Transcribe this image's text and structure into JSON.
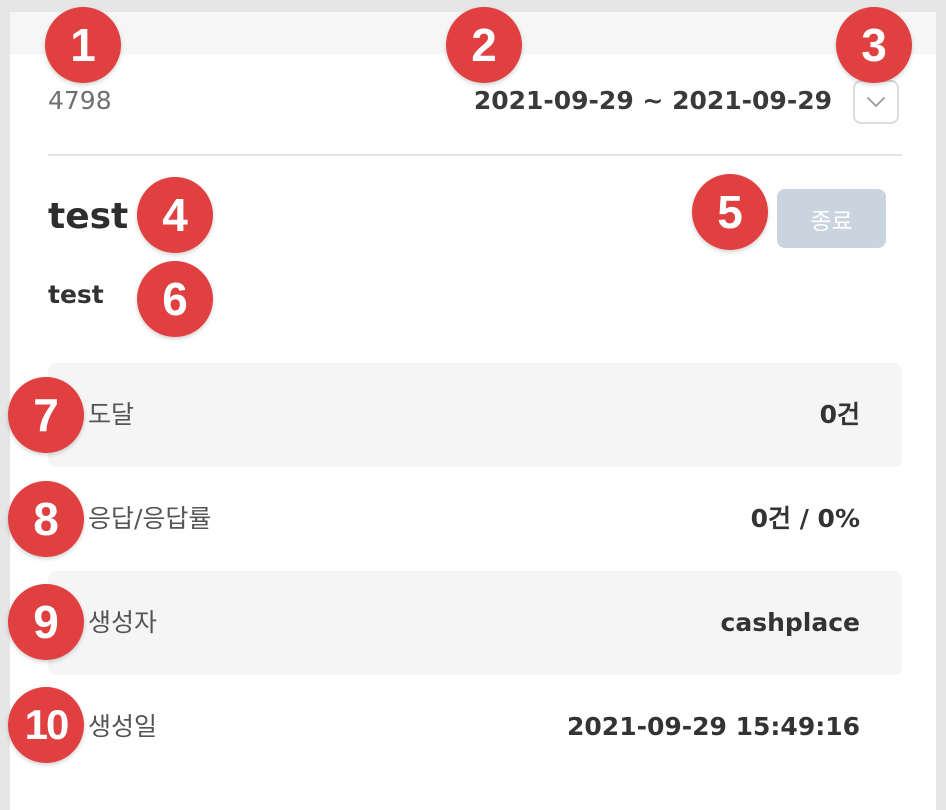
{
  "header": {
    "id": "4798",
    "date_range": "2021-09-29 ~ 2021-09-29"
  },
  "campaign": {
    "title": "test",
    "end_button_label": "종료",
    "description": "test"
  },
  "stats": [
    {
      "label": "도달",
      "value": "0건"
    },
    {
      "label": "응답/응답률",
      "value": "0건 / 0%"
    },
    {
      "label": "생성자",
      "value": "cashplace"
    },
    {
      "label": "생성일",
      "value": "2021-09-29 15:49:16"
    }
  ],
  "markers": [
    "1",
    "2",
    "3",
    "4",
    "5",
    "6",
    "7",
    "8",
    "9",
    "10"
  ],
  "colors": {
    "marker": "#e0403f",
    "end_button": "#c9d4df",
    "row_shade": "#f5f5f5"
  },
  "icons": {
    "dropdown": "chevron-down-icon"
  }
}
